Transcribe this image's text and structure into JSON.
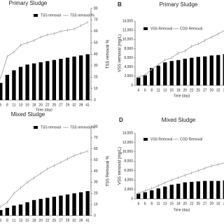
{
  "chart_data": [
    {
      "type": "combo",
      "title": "Primary Sludge",
      "x_label": "Time (day)",
      "y2_label": "TSS removal %",
      "categories": [
        "6",
        "8",
        "11",
        "13",
        "15",
        "18",
        "20",
        "22",
        "25",
        "27",
        "29",
        "32",
        "39",
        "41"
      ],
      "series": [
        {
          "name": "TSS removal",
          "kind": "bar",
          "axis": "y2",
          "color": "#000000",
          "values": [
            15,
            22,
            26,
            29,
            31,
            32,
            33,
            34,
            35,
            36,
            37,
            38,
            39,
            40
          ]
        },
        {
          "name": "TSS removal %",
          "kind": "line",
          "axis": "y2",
          "color": "#999999",
          "values": [
            19,
            38,
            42,
            48,
            50,
            52,
            55,
            57,
            58,
            60,
            61,
            62,
            65,
            68
          ]
        }
      ],
      "y2lim": [
        0,
        80
      ],
      "y2ticks": [
        0,
        10,
        20,
        30,
        40,
        50,
        60,
        70,
        80
      ]
    },
    {
      "type": "combo",
      "title": "Primary Sludge",
      "panel_label": "B",
      "x_label": "Time (day)",
      "y_label": "VSS removal (mg/L)",
      "categories": [
        "4",
        "6",
        "8",
        "11",
        "13",
        "15",
        "18",
        "20",
        "22",
        "25",
        "27",
        "29",
        "32",
        "39"
      ],
      "series": [
        {
          "name": "VSS Removal",
          "kind": "bar",
          "color": "#000000",
          "values": [
            1700,
            2200,
            3800,
            4300,
            5000,
            5300,
            5500,
            5800,
            6000,
            6200,
            6300,
            6500,
            6600,
            6800
          ]
        },
        {
          "name": "COD Removal",
          "kind": "line",
          "color": "#999999",
          "values": [
            1800,
            2300,
            3500,
            4500,
            5500,
            6000,
            7000,
            7500,
            8500,
            9000,
            9800,
            10500,
            11200,
            12000
          ]
        }
      ],
      "ylim": [
        0,
        14000
      ],
      "yticks": [
        0,
        {
          "value": 2000,
          "label": "2,000"
        },
        {
          "value": 4000,
          "label": "4,000"
        },
        {
          "value": 6000,
          "label": "6,000"
        },
        {
          "value": 8000,
          "label": "8,000"
        },
        {
          "value": 10000,
          "label": "10,000"
        },
        {
          "value": 12000,
          "label": "12,000"
        },
        {
          "value": 14000,
          "label": "14,000"
        }
      ]
    },
    {
      "type": "combo",
      "title": "Mixed Sludge",
      "y2_label": "TSS Removal %",
      "categories": [
        "6",
        "8",
        "11",
        "13",
        "15",
        "18",
        "20",
        "22",
        "25",
        "27",
        "29",
        "32",
        "39",
        "41"
      ],
      "series": [
        {
          "name": "TSS removal",
          "kind": "bar",
          "axis": "y2",
          "color": "#000000",
          "values": [
            5,
            7,
            9,
            10,
            12,
            14,
            15,
            16,
            17,
            18,
            19,
            20,
            21,
            22
          ]
        },
        {
          "name": "TSS removal %",
          "kind": "line",
          "axis": "y2",
          "color": "#999999",
          "values": [
            8,
            12,
            20,
            25,
            30,
            34,
            38,
            42,
            45,
            48,
            51,
            54,
            56,
            58
          ]
        }
      ],
      "y2lim": [
        0,
        80
      ],
      "y2ticks": [
        0,
        10,
        20,
        30,
        40,
        50,
        60,
        70,
        80
      ]
    },
    {
      "type": "combo",
      "title": "Mixed Sludge",
      "panel_label": "D",
      "x_label": "Time (day)",
      "y_label": "VSS removal (mg/L)",
      "categories": [
        "4",
        "6",
        "8",
        "11",
        "13",
        "15",
        "18",
        "20",
        "22",
        "25",
        "27",
        "29",
        "32",
        "39"
      ],
      "series": [
        {
          "name": "VSS Removal",
          "kind": "bar",
          "color": "#000000",
          "values": [
            1100,
            1400,
            1800,
            2200,
            2600,
            3000,
            3200,
            3500,
            3600,
            3700,
            3800,
            3800,
            3800,
            3900
          ]
        },
        {
          "name": "COD Removal",
          "kind": "line",
          "color": "#999999",
          "values": [
            1200,
            1700,
            2200,
            2800,
            3400,
            4000,
            4500,
            5000,
            5500,
            6000,
            6500,
            7000,
            7300,
            7700
          ]
        }
      ],
      "ylim": [
        0,
        14000
      ],
      "yticks": [
        0,
        {
          "value": 2000,
          "label": "2,000"
        },
        {
          "value": 4000,
          "label": "4,000"
        },
        {
          "value": 6000,
          "label": "6,000"
        },
        {
          "value": 8000,
          "label": "8,000"
        },
        {
          "value": 10000,
          "label": "10,000"
        },
        {
          "value": 12000,
          "label": "12,000"
        },
        {
          "value": 14000,
          "label": "14,000"
        }
      ]
    }
  ]
}
